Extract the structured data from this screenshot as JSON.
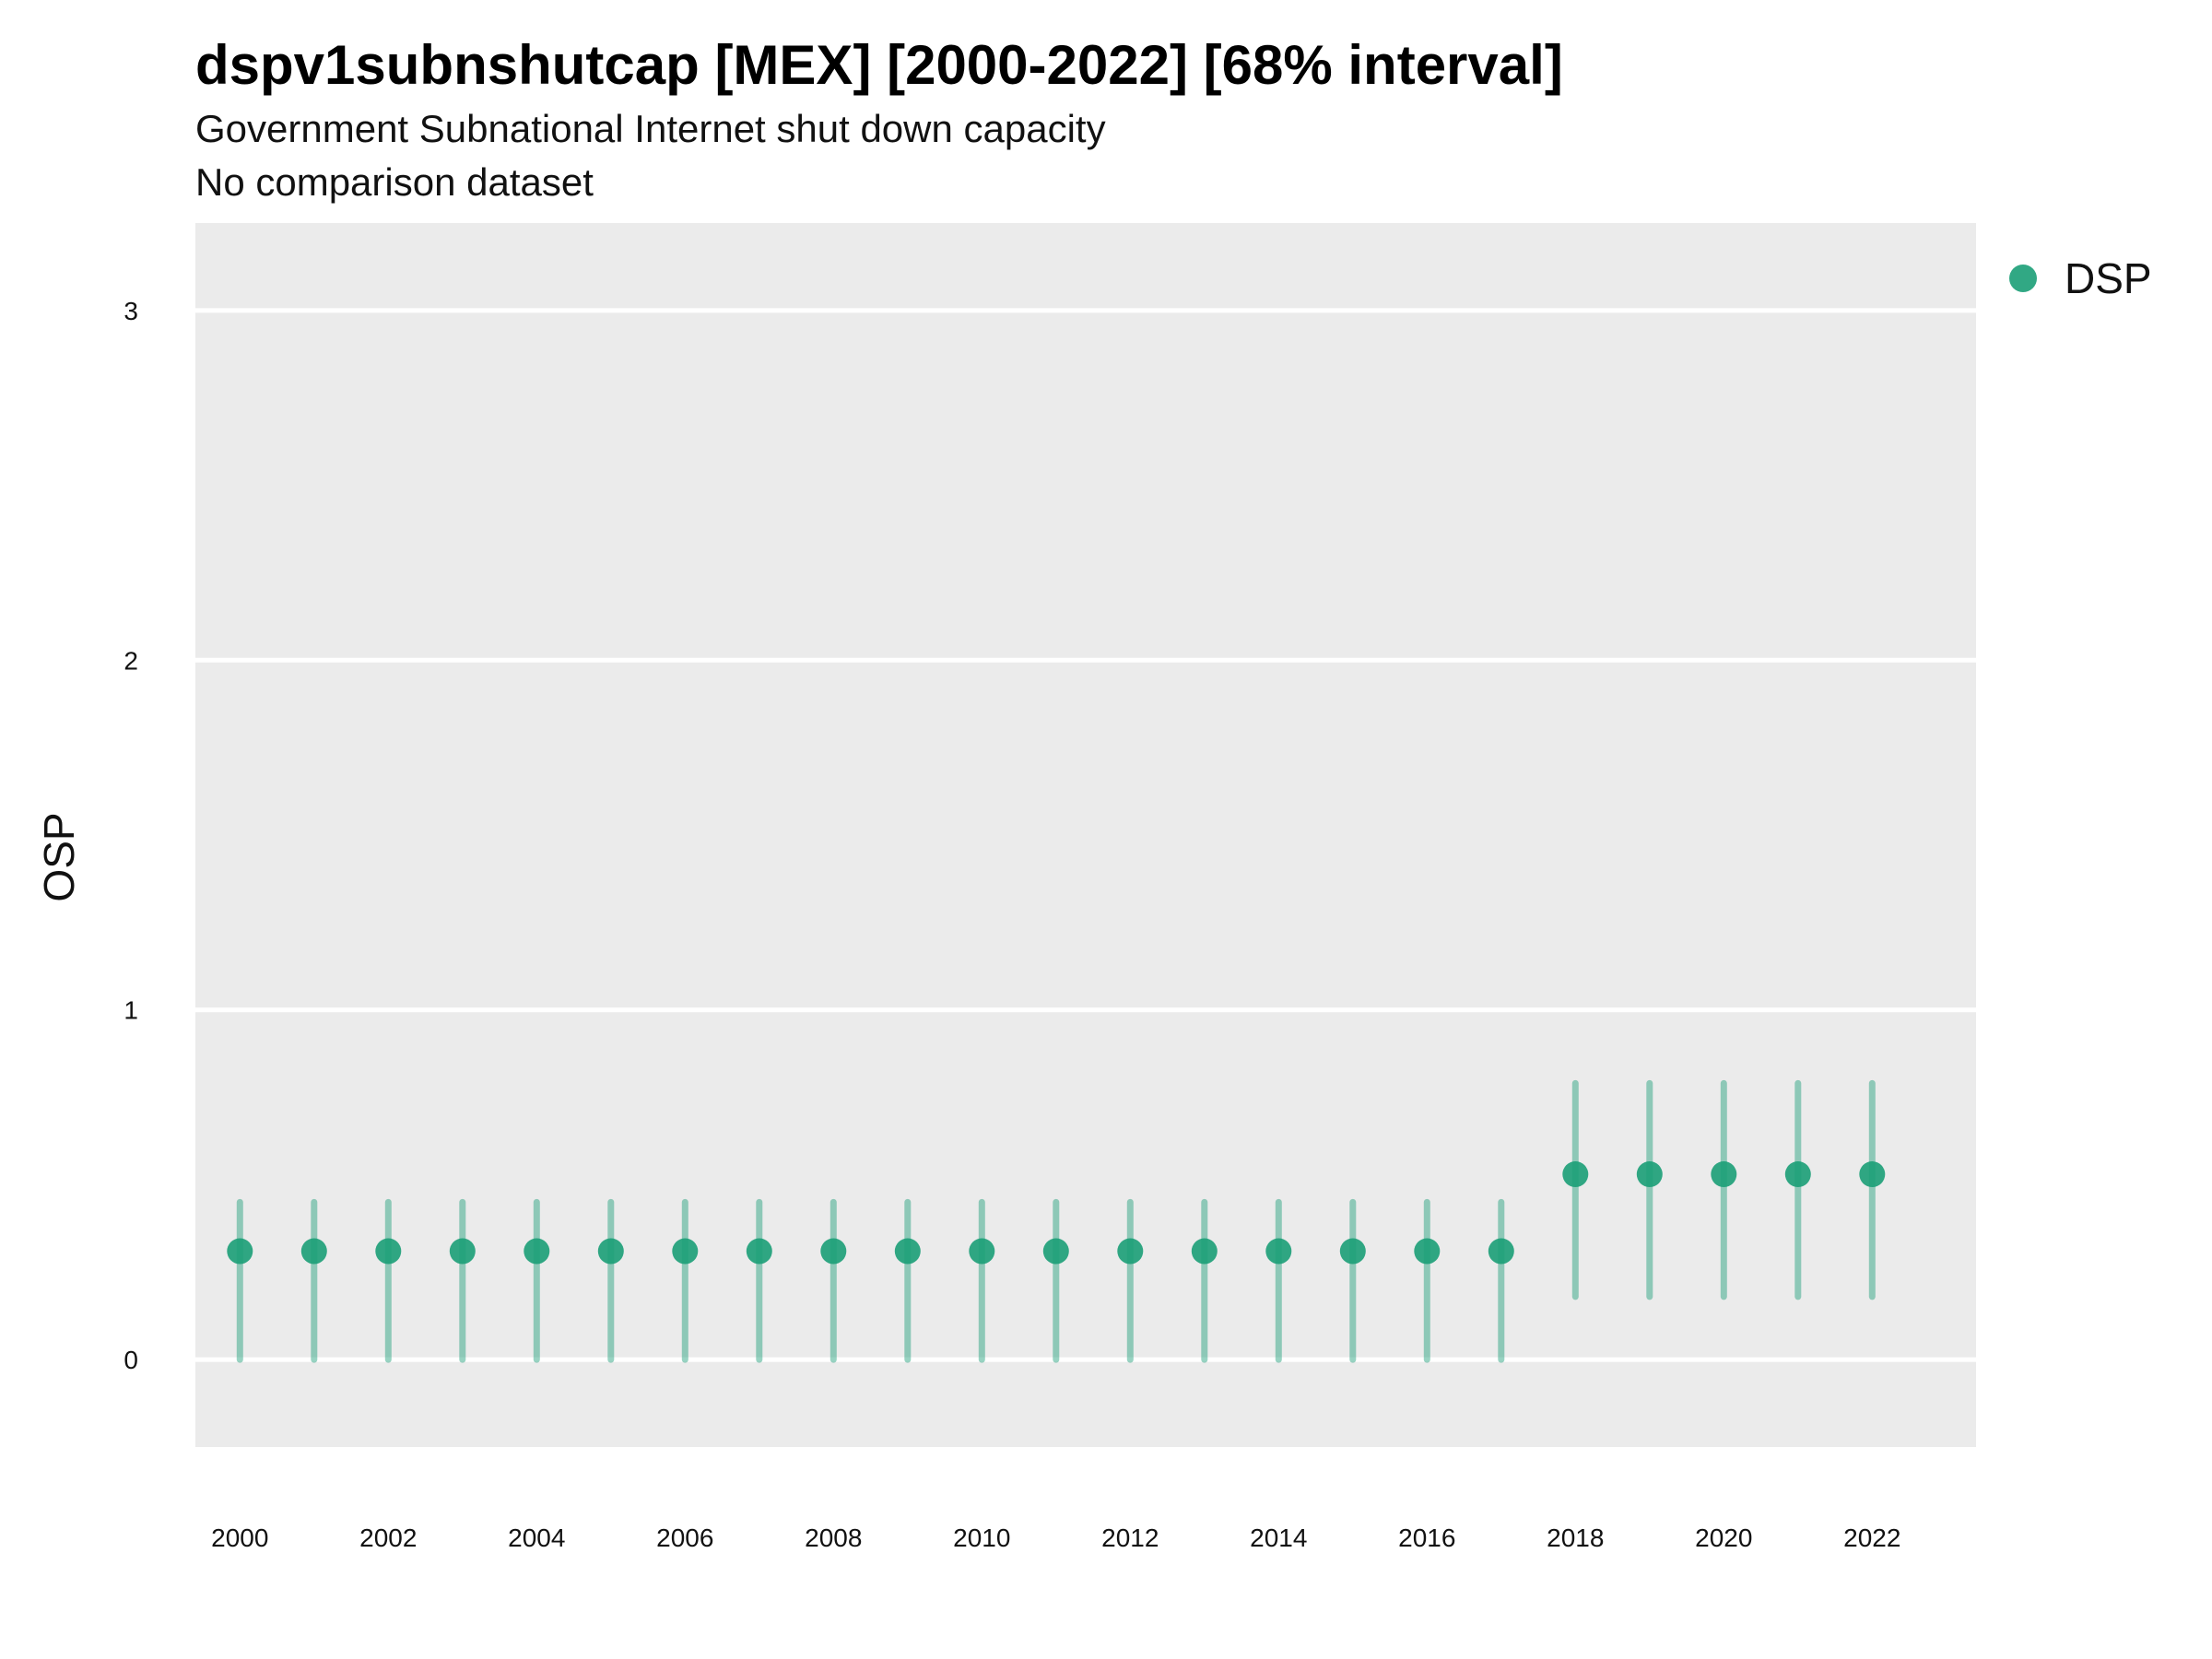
{
  "header": {
    "title": "dspv1subnshutcap [MEX] [2000-2022] [68% interval]",
    "subtitle": "Government Subnational Internet shut down capacity",
    "subtitle2": "No comparison dataset"
  },
  "colors": {
    "panel": "#ebebeb",
    "grid": "#ffffff",
    "point": "#1b9e77",
    "interval": "#1b9e77"
  },
  "chart_data": {
    "type": "scatter",
    "ylabel": "OSP",
    "xlabel": "",
    "ylim": [
      -0.25,
      3.25
    ],
    "xlim": [
      1999.4,
      2023.4
    ],
    "yticks": [
      0,
      1,
      2,
      3
    ],
    "ytick_labels": [
      "0",
      "1",
      "2",
      "3"
    ],
    "xticks": [
      2000,
      2002,
      2004,
      2006,
      2008,
      2010,
      2012,
      2014,
      2016,
      2018,
      2020,
      2022
    ],
    "xtick_labels": [
      "2000",
      "2002",
      "2004",
      "2006",
      "2008",
      "2010",
      "2012",
      "2014",
      "2016",
      "2018",
      "2020",
      "2022"
    ],
    "grid": true,
    "legend": {
      "position": "top-right",
      "entries": [
        "DSP"
      ]
    },
    "series": [
      {
        "name": "DSP",
        "x": [
          2000,
          2001,
          2002,
          2003,
          2004,
          2005,
          2006,
          2007,
          2008,
          2009,
          2010,
          2011,
          2012,
          2013,
          2014,
          2015,
          2016,
          2017,
          2018,
          2019,
          2020,
          2021,
          2022
        ],
        "y": [
          0.31,
          0.31,
          0.31,
          0.31,
          0.31,
          0.31,
          0.31,
          0.31,
          0.31,
          0.31,
          0.31,
          0.31,
          0.31,
          0.31,
          0.31,
          0.31,
          0.31,
          0.31,
          0.53,
          0.53,
          0.53,
          0.53,
          0.53
        ],
        "lower": [
          0.0,
          0.0,
          0.0,
          0.0,
          0.0,
          0.0,
          0.0,
          0.0,
          0.0,
          0.0,
          0.0,
          0.0,
          0.0,
          0.0,
          0.0,
          0.0,
          0.0,
          0.0,
          0.18,
          0.18,
          0.18,
          0.18,
          0.18
        ],
        "upper": [
          0.45,
          0.45,
          0.45,
          0.45,
          0.45,
          0.45,
          0.45,
          0.45,
          0.45,
          0.45,
          0.45,
          0.45,
          0.45,
          0.45,
          0.45,
          0.45,
          0.45,
          0.45,
          0.79,
          0.79,
          0.79,
          0.79,
          0.79
        ]
      }
    ]
  }
}
